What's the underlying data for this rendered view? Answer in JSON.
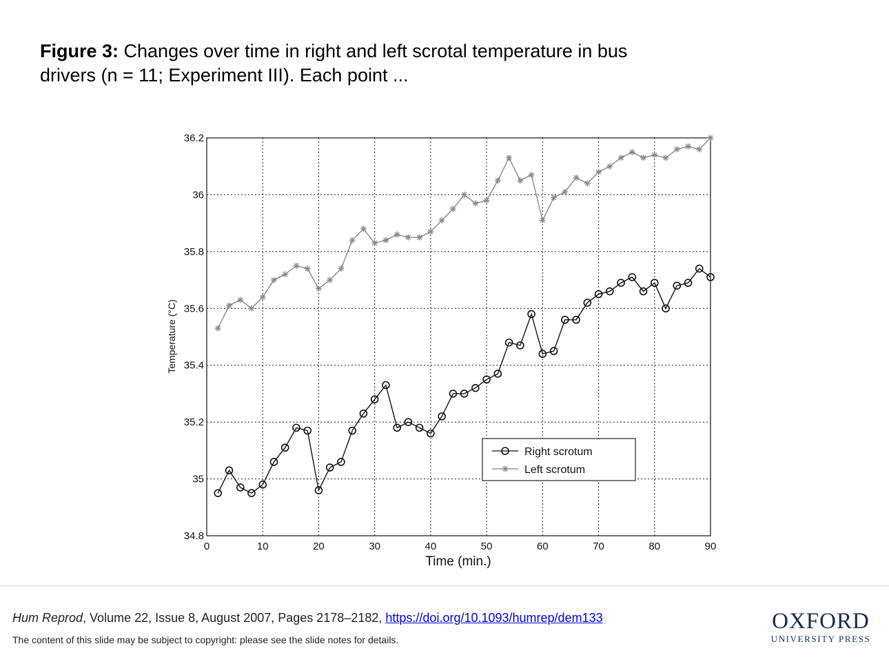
{
  "caption": {
    "label": "Figure 3:",
    "text": "Changes over time in right and left scrotal temperature in bus drivers (n = 11; Experiment III). Each point ..."
  },
  "chart_data": {
    "type": "line",
    "xlabel": "Time (min.)",
    "ylabel": "Temperature (°C)",
    "xlim": [
      0,
      90
    ],
    "ylim": [
      34.8,
      36.2
    ],
    "xticks": [
      0,
      10,
      20,
      30,
      40,
      50,
      60,
      70,
      80,
      90
    ],
    "yticks": [
      34.8,
      35,
      35.2,
      35.4,
      35.6,
      35.8,
      36,
      36.2
    ],
    "ytick_labels": [
      "34.8",
      "35",
      "35.2",
      "35.4",
      "35.6",
      "35.8",
      "36",
      "36.2"
    ],
    "grid": true,
    "legend_position": "lower-right",
    "x": [
      2,
      4,
      6,
      8,
      10,
      12,
      14,
      16,
      18,
      20,
      22,
      24,
      26,
      28,
      30,
      32,
      34,
      36,
      38,
      40,
      42,
      44,
      46,
      48,
      50,
      52,
      54,
      56,
      58,
      60,
      62,
      64,
      66,
      68,
      70,
      72,
      74,
      76,
      78,
      80,
      82,
      84,
      86,
      88,
      90
    ],
    "series": [
      {
        "name": "Right scrotum",
        "marker": "circle",
        "color": "#111111",
        "values": [
          34.95,
          35.03,
          34.97,
          34.95,
          34.98,
          35.06,
          35.11,
          35.18,
          35.17,
          34.96,
          35.04,
          35.06,
          35.17,
          35.23,
          35.28,
          35.33,
          35.18,
          35.2,
          35.18,
          35.16,
          35.22,
          35.3,
          35.3,
          35.32,
          35.35,
          35.37,
          35.48,
          35.47,
          35.58,
          35.44,
          35.45,
          35.56,
          35.56,
          35.62,
          35.65,
          35.66,
          35.69,
          35.71,
          35.66,
          35.69,
          35.6,
          35.68,
          35.69,
          35.74,
          35.71
        ]
      },
      {
        "name": "Left scrotum",
        "marker": "star",
        "color": "#888888",
        "values": [
          35.53,
          35.61,
          35.63,
          35.6,
          35.64,
          35.7,
          35.72,
          35.75,
          35.74,
          35.67,
          35.7,
          35.74,
          35.84,
          35.88,
          35.83,
          35.84,
          35.86,
          35.85,
          35.85,
          35.87,
          35.91,
          35.95,
          36.0,
          35.97,
          35.98,
          36.05,
          36.13,
          36.05,
          36.07,
          35.91,
          35.99,
          36.01,
          36.06,
          36.04,
          36.08,
          36.1,
          36.13,
          36.15,
          36.13,
          36.14,
          36.13,
          36.16,
          36.17,
          36.16,
          36.2
        ]
      }
    ]
  },
  "citation": {
    "journal": "Hum Reprod",
    "details": ", Volume 22, Issue 8, August 2007, Pages 2178–2182, ",
    "doi": "https://doi.org/10.1093/humrep/dem133"
  },
  "copyright": "The content of this slide may be subject to copyright: please see the slide notes for details.",
  "logo": {
    "line1": "OXFORD",
    "line2": "UNIVERSITY PRESS"
  }
}
